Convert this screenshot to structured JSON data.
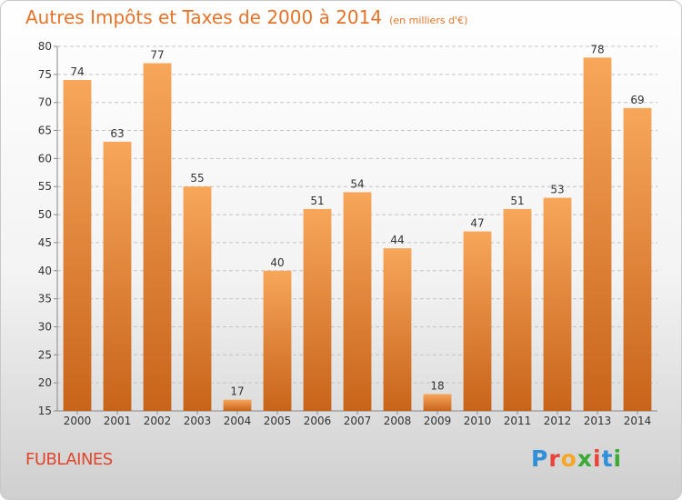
{
  "title": "Autres Impôts et Taxes de 2000 à 2014",
  "unit": "(en milliers d'€)",
  "town": "FUBLAINES",
  "logo": {
    "letters": [
      "P",
      "r",
      "o",
      "x",
      "i",
      "t",
      "i"
    ],
    "colors": [
      "#2f8fd8",
      "#e9443a",
      "#f5a623",
      "#3aaa35",
      "#e9443a",
      "#2f8fd8",
      "#3aaa35"
    ]
  },
  "colors": {
    "bar_light": "#f7a65a",
    "bar_dark": "#c8641a",
    "title": "#e6732a",
    "town": "#e0462c"
  },
  "chart_data": {
    "type": "bar",
    "categories": [
      "2000",
      "2001",
      "2002",
      "2003",
      "2004",
      "2005",
      "2006",
      "2007",
      "2008",
      "2009",
      "2010",
      "2011",
      "2012",
      "2013",
      "2014"
    ],
    "values": [
      74,
      63,
      77,
      55,
      17,
      40,
      51,
      54,
      44,
      18,
      47,
      51,
      53,
      78,
      69
    ],
    "ylim": [
      15,
      80
    ],
    "yticks": [
      15,
      20,
      25,
      30,
      35,
      40,
      45,
      50,
      55,
      60,
      65,
      70,
      75,
      80
    ],
    "grid": true
  }
}
